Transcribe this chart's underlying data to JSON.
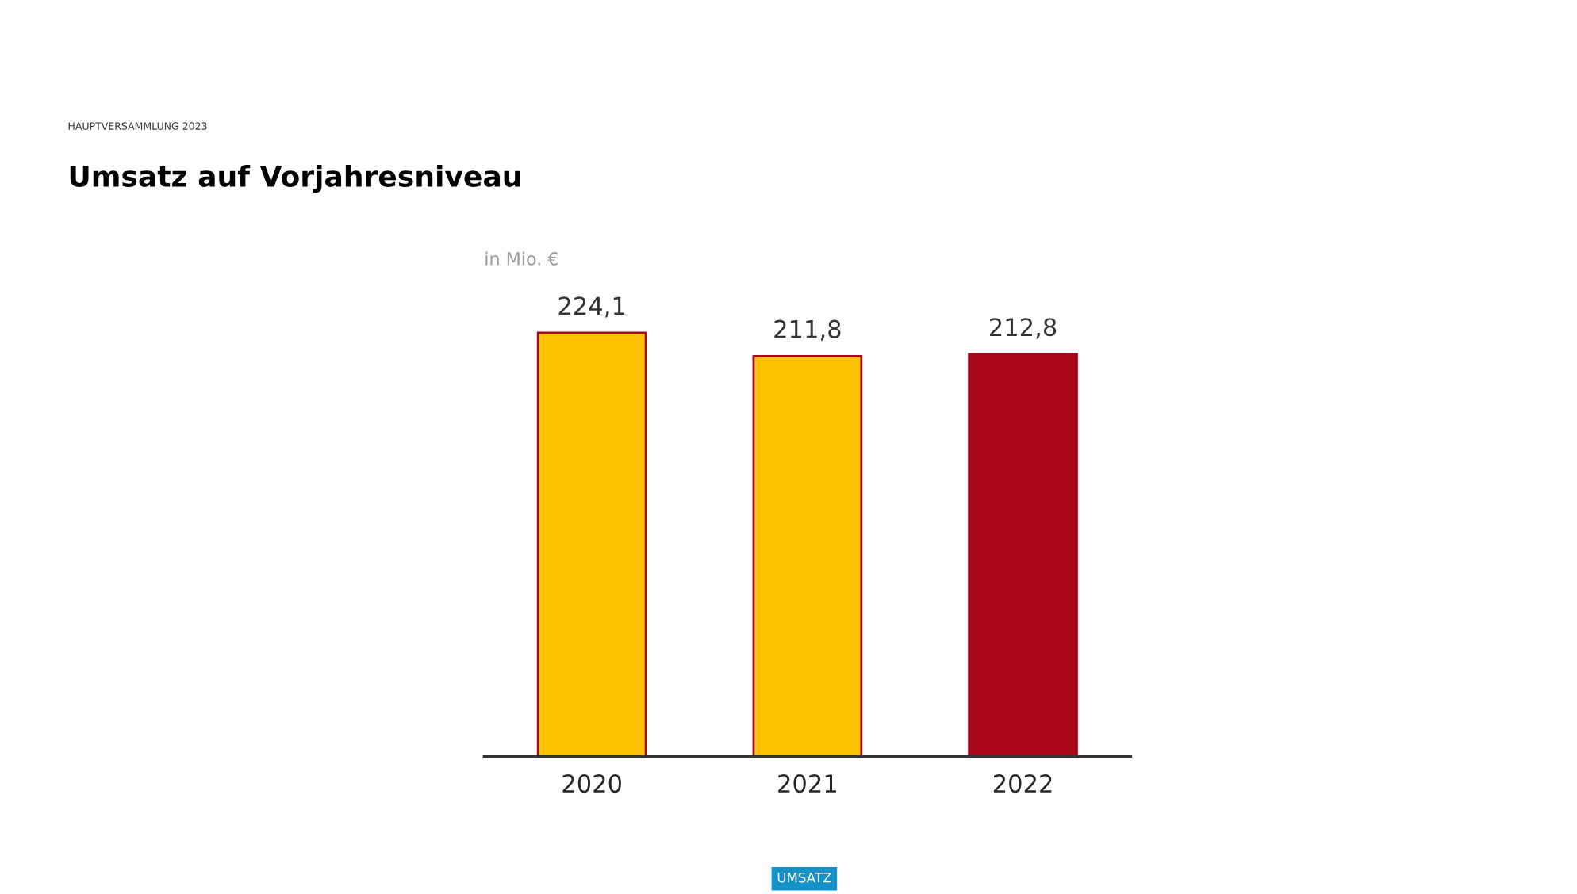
{
  "chart_data": {
    "type": "bar",
    "title": "Umsatz auf Vorjahresniveau",
    "ylabel": "in Mio. €",
    "annotations": [
      "HAUPTVERSAMMLUNG 2023",
      "UMSATZ"
    ],
    "categories": [
      "2020",
      "2021",
      "2022"
    ],
    "values": [
      224.1,
      211.8,
      212.8
    ],
    "colors": [
      "#fcc200",
      "#fcc200",
      "#a8071a"
    ],
    "value_labels": [
      "224,1",
      "211,8",
      "212,8"
    ],
    "tick_labels": "x",
    "grid": false
  }
}
